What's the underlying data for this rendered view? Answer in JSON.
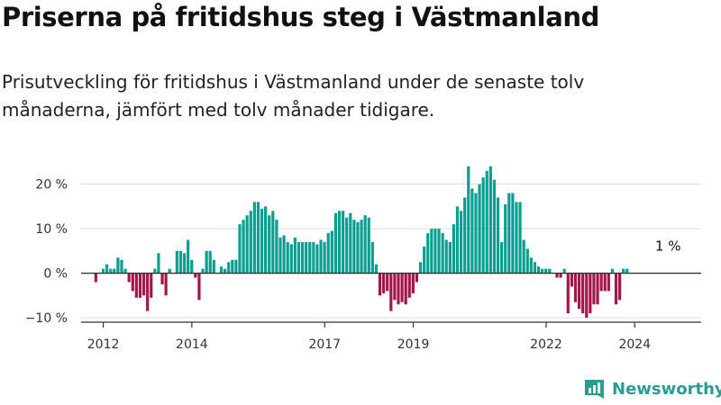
{
  "title": "Priserna på fritidshus steg i Västmanland",
  "subtitle": "Prisutveckling för fritidshus i Västmanland under de senaste tolv månaderna, jämfört med tolv månader tidigare.",
  "brand": {
    "name": "Newsworthy",
    "icon": "newsworthy-logo-icon"
  },
  "colors": {
    "positive": "#0a9e91",
    "negative": "#a3164a",
    "grid": "#dddddd",
    "axis": "#333333"
  },
  "chart_data": {
    "type": "bar",
    "title": "",
    "xlabel": "",
    "ylabel": "",
    "unit": "%",
    "ylim": [
      -11,
      27
    ],
    "y_ticks": [
      -10,
      0,
      10,
      20
    ],
    "y_tick_labels": [
      "−10 %",
      "0 %",
      "10 %",
      "20 %"
    ],
    "x_ticks": [
      2012,
      2014,
      2017,
      2019,
      2022,
      2024
    ],
    "grid": true,
    "annotation": {
      "text": "1 %",
      "x": 2024.67,
      "y": 1
    },
    "x_start": 2011.5,
    "x_step": 0.0833,
    "values": [
      0,
      0,
      0,
      0,
      -2,
      0,
      1,
      2,
      1,
      1,
      3.5,
      3,
      1,
      -2,
      -4,
      -5.5,
      -5.5,
      -5,
      -8.5,
      -5.5,
      1,
      4.5,
      -2.5,
      -5,
      1,
      0,
      5,
      5,
      4.5,
      7.5,
      3,
      -1,
      -6,
      1,
      5,
      5,
      3,
      0,
      1.5,
      1,
      2.5,
      3,
      3,
      11,
      12,
      13,
      14,
      16,
      16,
      14.5,
      15,
      13,
      14,
      12,
      8,
      8.5,
      7,
      6.5,
      8,
      7,
      7,
      7,
      7,
      7,
      6.5,
      7.5,
      7,
      9,
      9.5,
      13.5,
      14,
      14,
      12.5,
      13.5,
      12,
      11.5,
      12,
      13,
      12.5,
      7,
      2,
      -5,
      -4.5,
      -4,
      -8.5,
      -6,
      -7,
      -6.5,
      -7,
      -5.5,
      -4.5,
      -2,
      2.5,
      6,
      9,
      10,
      10,
      10,
      9,
      7.5,
      7,
      11,
      15,
      14,
      17,
      24,
      19,
      18,
      20,
      21.5,
      23,
      24,
      21,
      17,
      7,
      15.5,
      18,
      18,
      16,
      16,
      7.5,
      5.5,
      3.5,
      2.5,
      1.5,
      1,
      1,
      1,
      0,
      -1,
      -1,
      1,
      -9,
      -3,
      -6.5,
      -8,
      -9,
      -10,
      -9,
      -7,
      -7,
      -4,
      -4,
      -4,
      1,
      -7,
      -6,
      1,
      1
    ]
  }
}
